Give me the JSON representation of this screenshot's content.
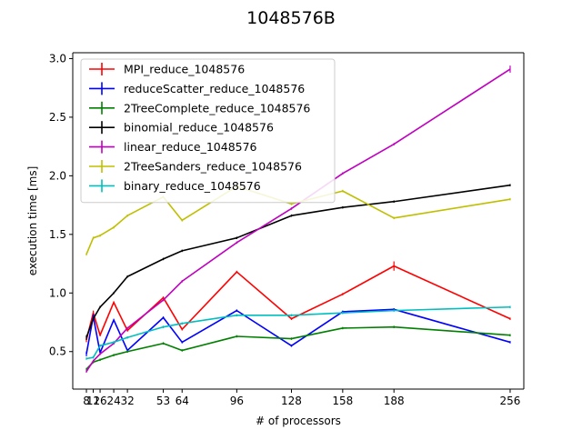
{
  "chart_data": {
    "type": "line",
    "title": "1048576B",
    "xlabel": "# of processors",
    "ylabel": "execution time [ms]",
    "xlim": [
      0,
      264
    ],
    "ylim": [
      0.18,
      3.05
    ],
    "xticks": [
      8,
      12,
      16,
      24,
      32,
      53,
      64,
      96,
      128,
      158,
      188,
      256
    ],
    "xtick_labels": [
      "8",
      "12",
      "16",
      "24",
      "32",
      "53",
      "64",
      "96",
      "128",
      "158",
      "188",
      "256"
    ],
    "yticks": [
      0.5,
      1.0,
      1.5,
      2.0,
      2.5,
      3.0
    ],
    "ytick_labels": [
      "0.5",
      "1.0",
      "1.5",
      "2.0",
      "2.5",
      "3.0"
    ],
    "grid": false,
    "legend_position": "upper-left",
    "x": [
      8,
      12,
      16,
      24,
      32,
      53,
      64,
      96,
      128,
      158,
      188,
      256
    ],
    "series": [
      {
        "name": "MPI_reduce_1048576",
        "color": "#ff0000",
        "values": [
          0.6,
          0.83,
          0.64,
          0.92,
          0.68,
          0.96,
          0.69,
          1.18,
          0.78,
          0.99,
          1.23,
          0.78
        ],
        "errors": [
          0.02,
          0.02,
          0.01,
          0.01,
          0.01,
          0.01,
          0.01,
          0.01,
          0.01,
          0.01,
          0.04,
          0.01
        ]
      },
      {
        "name": "reduceScatter_reduce_1048576",
        "color": "#0000ff",
        "values": [
          0.48,
          0.8,
          0.49,
          0.77,
          0.51,
          0.79,
          0.58,
          0.85,
          0.55,
          0.84,
          0.86,
          0.58
        ],
        "errors": [
          0.02,
          0.02,
          0.01,
          0.01,
          0.01,
          0.01,
          0.01,
          0.01,
          0.01,
          0.01,
          0.01,
          0.01
        ]
      },
      {
        "name": "2TreeComplete_reduce_1048576",
        "color": "#008000",
        "values": [
          0.35,
          0.41,
          0.43,
          0.47,
          0.5,
          0.57,
          0.51,
          0.63,
          0.61,
          0.7,
          0.71,
          0.64
        ],
        "errors": [
          0.01,
          0.01,
          0.01,
          0.01,
          0.01,
          0.01,
          0.01,
          0.01,
          0.01,
          0.01,
          0.01,
          0.01
        ]
      },
      {
        "name": "binomial_reduce_1048576",
        "color": "#000000",
        "values": [
          0.62,
          0.78,
          0.88,
          1.0,
          1.14,
          1.29,
          1.36,
          1.47,
          1.66,
          1.73,
          1.78,
          1.92
        ],
        "errors": [
          0.02,
          0.01,
          0.01,
          0.01,
          0.01,
          0.01,
          0.01,
          0.01,
          0.01,
          0.01,
          0.01,
          0.01
        ]
      },
      {
        "name": "linear_reduce_1048576",
        "color": "#bf00bf",
        "values": [
          0.33,
          0.42,
          0.48,
          0.57,
          0.7,
          0.94,
          1.1,
          1.43,
          1.72,
          2.02,
          2.27,
          2.91
        ],
        "errors": [
          0.01,
          0.01,
          0.01,
          0.01,
          0.01,
          0.01,
          0.01,
          0.01,
          0.01,
          0.01,
          0.01,
          0.03
        ]
      },
      {
        "name": "2TreeSanders_reduce_1048576",
        "color": "#bfbf00",
        "values": [
          1.33,
          1.47,
          1.49,
          1.56,
          1.66,
          1.82,
          1.62,
          1.91,
          1.76,
          1.87,
          1.64,
          1.8
        ],
        "errors": [
          0.01,
          0.01,
          0.01,
          0.01,
          0.01,
          0.01,
          0.01,
          0.01,
          0.01,
          0.01,
          0.01,
          0.01
        ]
      },
      {
        "name": "binary_reduce_1048576",
        "color": "#00bfbf",
        "values": [
          0.44,
          0.45,
          0.55,
          0.58,
          0.62,
          0.71,
          0.74,
          0.81,
          0.81,
          0.83,
          0.85,
          0.88
        ],
        "errors": [
          0.01,
          0.01,
          0.01,
          0.01,
          0.01,
          0.01,
          0.01,
          0.01,
          0.01,
          0.01,
          0.01,
          0.01
        ]
      }
    ]
  }
}
